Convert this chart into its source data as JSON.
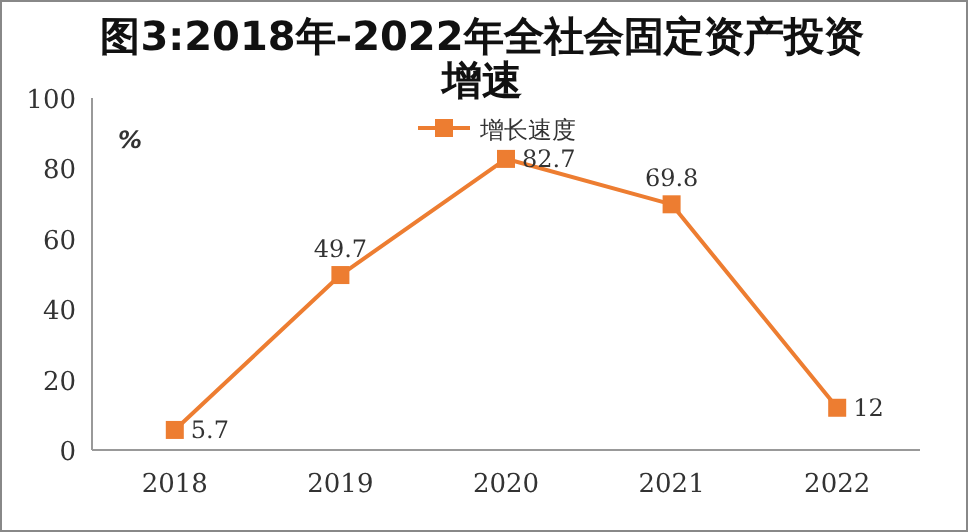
{
  "chart_data": {
    "type": "line",
    "title": "图3:2018年-2022年全社会固定资产投资增速",
    "ylabel": "%",
    "categories": [
      "2018",
      "2019",
      "2020",
      "2021",
      "2022"
    ],
    "series": [
      {
        "name": "增长速度",
        "color": "#ed7d31",
        "values": [
          5.7,
          49.7,
          82.7,
          69.8,
          12
        ]
      }
    ],
    "ylim": [
      0,
      100
    ],
    "yticks": [
      0,
      20,
      40,
      60,
      80,
      100
    ],
    "marker": "square",
    "legend": "top",
    "data_labels": true,
    "grid": false
  }
}
